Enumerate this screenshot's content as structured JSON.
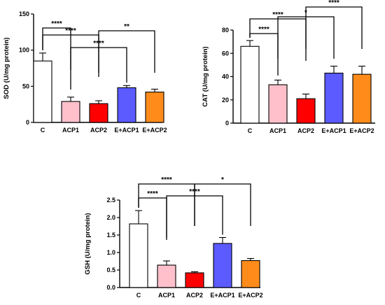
{
  "chart_data": [
    {
      "id": "sod",
      "type": "bar",
      "ylabel": "SOD (U/mg protein)",
      "ylim": [
        0,
        150
      ],
      "yticks": [
        0,
        50,
        100,
        150
      ],
      "categories": [
        "C",
        "ACP1",
        "ACP2",
        "E+ACP1",
        "E+ACP2"
      ],
      "values": [
        85,
        29,
        26,
        48,
        42
      ],
      "errors": [
        11,
        6,
        4,
        3,
        4
      ],
      "colors": [
        "#ffffff",
        "#ffc0cb",
        "#ff0000",
        "#5b5bff",
        "#ff8c1a"
      ],
      "significance": [
        {
          "from": "C",
          "to": "ACP1",
          "label": "****"
        },
        {
          "from": "C",
          "to": "ACP2",
          "label": "****"
        },
        {
          "from": "ACP1",
          "to": "E+ACP1",
          "label": "****"
        },
        {
          "from": "ACP2",
          "to": "E+ACP2",
          "label": "**"
        }
      ]
    },
    {
      "id": "cat",
      "type": "bar",
      "ylabel": "CAT (U/mg protein)",
      "ylim": [
        0,
        80
      ],
      "yticks": [
        0,
        20,
        40,
        60,
        80
      ],
      "categories": [
        "C",
        "ACP1",
        "ACP2",
        "E+ACP1",
        "E+ACP2"
      ],
      "values": [
        66,
        33,
        21,
        43,
        42
      ],
      "errors": [
        5,
        4,
        4,
        6,
        7
      ],
      "colors": [
        "#ffffff",
        "#ffc0cb",
        "#ff0000",
        "#5b5bff",
        "#ff8c1a"
      ],
      "significance": [
        {
          "from": "C",
          "to": "ACP1",
          "label": "****"
        },
        {
          "from": "C",
          "to": "ACP2",
          "label": "****"
        },
        {
          "from": "ACP1",
          "to": "E+ACP1",
          "label": "*"
        },
        {
          "from": "ACP2",
          "to": "E+ACP2",
          "label": "****"
        }
      ]
    },
    {
      "id": "gsh",
      "type": "bar",
      "ylabel": "GSH (U/mg protein)",
      "ylim": [
        0,
        2.5
      ],
      "yticks": [
        "0.0",
        "0.5",
        "1.0",
        "1.5",
        "2.0",
        "2.5"
      ],
      "categories": [
        "C",
        "ACP1",
        "ACP2",
        "E+ACP1",
        "E+ACP2"
      ],
      "values": [
        1.82,
        0.64,
        0.42,
        1.26,
        0.77
      ],
      "errors": [
        0.38,
        0.12,
        0.03,
        0.17,
        0.06
      ],
      "colors": [
        "#ffffff",
        "#ffc0cb",
        "#ff0000",
        "#5b5bff",
        "#ff8c1a"
      ],
      "significance": [
        {
          "from": "C",
          "to": "ACP1",
          "label": "****"
        },
        {
          "from": "C",
          "to": "ACP2",
          "label": "****"
        },
        {
          "from": "ACP1",
          "to": "E+ACP1",
          "label": "****"
        },
        {
          "from": "ACP2",
          "to": "E+ACP2",
          "label": "*"
        }
      ]
    }
  ]
}
